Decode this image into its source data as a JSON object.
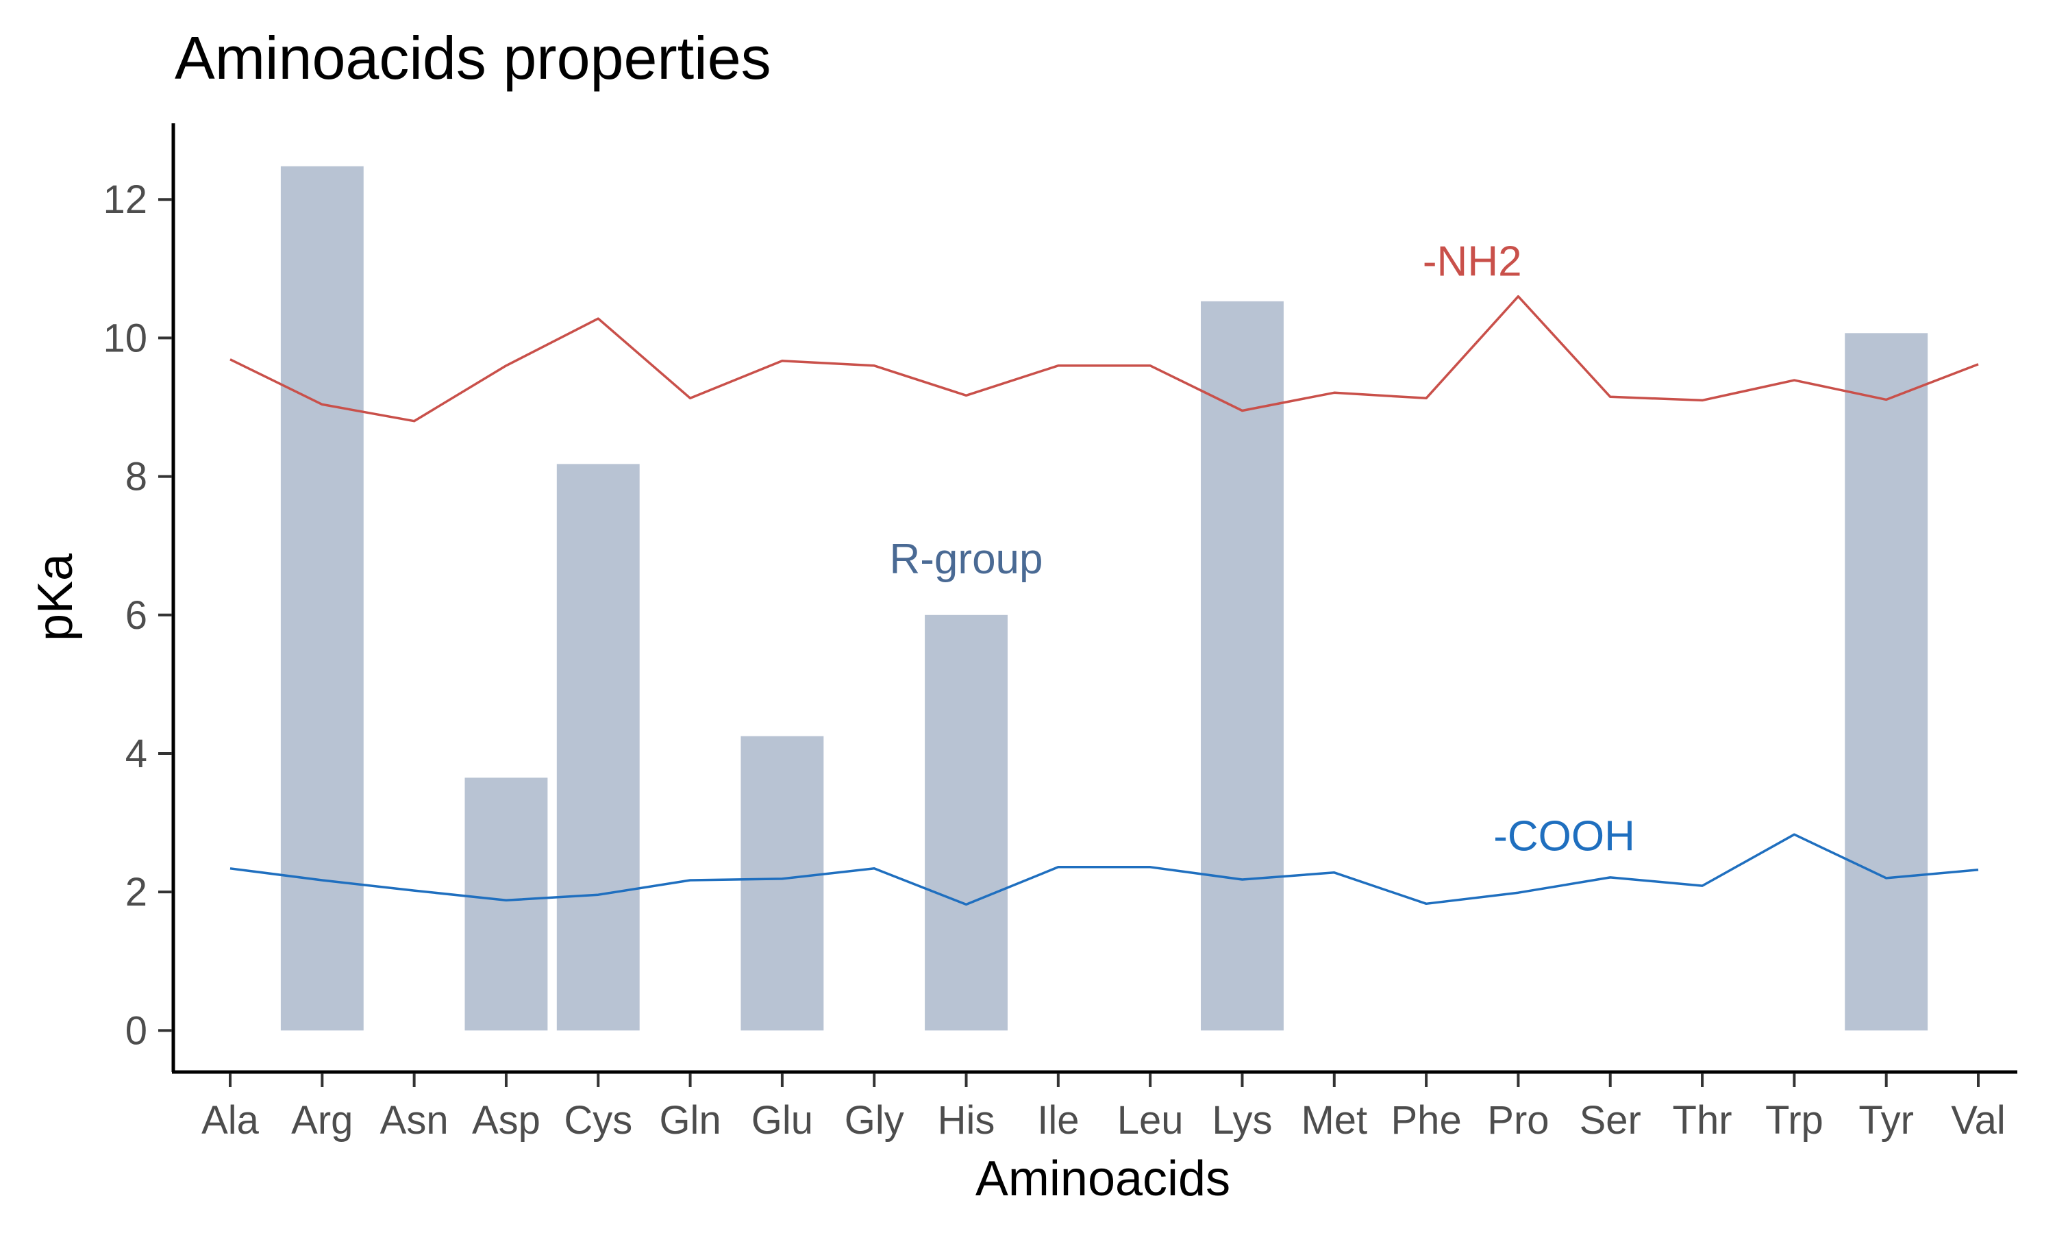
{
  "chart_data": {
    "type": "bar",
    "title": "Aminoacids properties",
    "xlabel": "Aminoacids",
    "ylabel": "pKa",
    "categories": [
      "Ala",
      "Arg",
      "Asn",
      "Asp",
      "Cys",
      "Gln",
      "Glu",
      "Gly",
      "His",
      "Ile",
      "Leu",
      "Lys",
      "Met",
      "Phe",
      "Pro",
      "Ser",
      "Thr",
      "Trp",
      "Tyr",
      "Val"
    ],
    "ylim": [
      -0.6,
      13.1
    ],
    "yticks": [
      0,
      2,
      4,
      6,
      8,
      10,
      12
    ],
    "grid": false,
    "series": [
      {
        "kind": "bar",
        "color": "#b8c3d3",
        "values": [
          null,
          12.48,
          null,
          3.65,
          8.18,
          null,
          4.25,
          null,
          6.0,
          null,
          null,
          10.53,
          null,
          null,
          null,
          null,
          null,
          null,
          10.07,
          null
        ]
      },
      {
        "kind": "line",
        "color": "#c9504a",
        "values": [
          9.69,
          9.04,
          8.8,
          9.6,
          10.28,
          9.13,
          9.67,
          9.6,
          9.17,
          9.6,
          9.6,
          8.95,
          9.21,
          9.13,
          10.6,
          9.15,
          9.1,
          9.39,
          9.11,
          9.62
        ]
      },
      {
        "kind": "line",
        "color": "#1f6fbf",
        "values": [
          2.34,
          2.17,
          2.02,
          1.88,
          1.96,
          2.17,
          2.19,
          2.34,
          1.82,
          2.36,
          2.36,
          2.18,
          2.28,
          1.83,
          1.99,
          2.21,
          2.09,
          2.83,
          2.2,
          2.32
        ]
      }
    ],
    "annotations": [
      {
        "text": "-NH2",
        "x": 13.5,
        "y": 10.9,
        "color": "#c9504a"
      },
      {
        "text": "R-group",
        "x": 8.0,
        "y": 6.6,
        "color": "#4a6a94"
      },
      {
        "text": "-COOH",
        "x": 14.5,
        "y": 2.6,
        "color": "#1f6fbf"
      }
    ]
  }
}
